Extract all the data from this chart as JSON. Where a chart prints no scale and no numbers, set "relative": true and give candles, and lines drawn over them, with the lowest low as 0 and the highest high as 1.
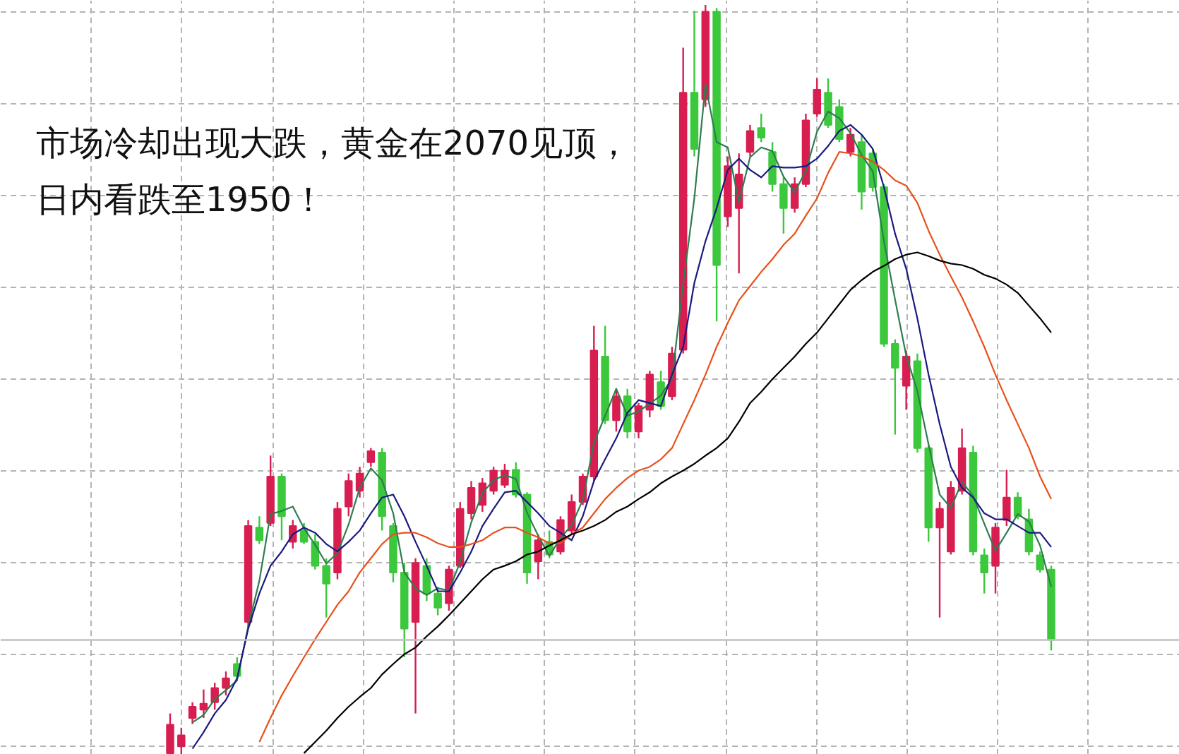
{
  "chart_data": {
    "type": "candlestick",
    "annotations": [
      "市场冷却出现大跌，黄金在2070见顶，",
      "日内看跌至1950！"
    ],
    "relative": true,
    "grid": true,
    "categories": [
      null,
      null,
      null,
      null,
      null,
      null,
      null,
      null,
      null,
      null,
      null,
      null,
      null,
      null,
      null,
      null,
      null,
      null,
      null,
      null,
      null,
      null,
      null,
      null,
      null,
      null,
      null,
      null,
      null,
      null,
      null,
      null,
      null,
      null,
      null,
      null,
      null,
      null,
      null,
      null,
      null,
      null,
      null,
      null,
      null,
      null,
      null,
      null,
      null,
      null,
      null,
      null,
      null,
      null,
      null,
      null,
      null,
      null,
      null,
      null,
      null,
      null,
      null,
      null,
      null,
      null,
      null,
      null,
      null,
      null,
      null,
      null,
      null,
      null,
      null,
      null,
      null,
      null,
      null,
      null
    ],
    "ohlc": [
      [
        0.002,
        0.055,
        0,
        0.04
      ],
      [
        0.011,
        0.036,
        0,
        0.026
      ],
      [
        0.049,
        0.07,
        0.041,
        0.064
      ],
      [
        0.06,
        0.087,
        0.049,
        0.068
      ],
      [
        0.07,
        0.096,
        0.06,
        0.089
      ],
      [
        0.089,
        0.111,
        0.079,
        0.102
      ],
      [
        0.121,
        0.13,
        0.102,
        0.105
      ],
      [
        0.177,
        0.313,
        0.168,
        0.305
      ],
      [
        0.303,
        0.318,
        0.281,
        0.286
      ],
      [
        0.309,
        0.399,
        0.305,
        0.371
      ],
      [
        0.371,
        0.375,
        0.286,
        0.318
      ],
      [
        0.284,
        0.313,
        0.275,
        0.305
      ],
      [
        0.299,
        0.309,
        0.281,
        0.284
      ],
      [
        0.284,
        0.294,
        0.247,
        0.252
      ],
      [
        0.252,
        0.262,
        0.183,
        0.228
      ],
      [
        0.243,
        0.337,
        0.234,
        0.328
      ],
      [
        0.331,
        0.375,
        0.318,
        0.365
      ],
      [
        0.352,
        0.384,
        0.343,
        0.375
      ],
      [
        0.39,
        0.409,
        0.384,
        0.405
      ],
      [
        0.403,
        0.409,
        0.299,
        0.318
      ],
      [
        0.305,
        0.309,
        0.23,
        0.243
      ],
      [
        0.243,
        0.256,
        0.13,
        0.168
      ],
      [
        0.177,
        0.262,
        0.055,
        0.256
      ],
      [
        0.252,
        0.262,
        0.205,
        0.215
      ],
      [
        0.215,
        0.224,
        0.186,
        0.196
      ],
      [
        0.202,
        0.252,
        0.192,
        0.247
      ],
      [
        0.252,
        0.337,
        0.249,
        0.328
      ],
      [
        0.322,
        0.365,
        0.314,
        0.356
      ],
      [
        0.333,
        0.369,
        0.324,
        0.362
      ],
      [
        0.352,
        0.384,
        0.347,
        0.379
      ],
      [
        0.36,
        0.388,
        0.356,
        0.379
      ],
      [
        0.38,
        0.39,
        0.343,
        0.347
      ],
      [
        0.347,
        0.35,
        0.228,
        0.243
      ],
      [
        0.258,
        0.294,
        0.234,
        0.286
      ],
      [
        0.284,
        0.299,
        0.262,
        0.267
      ],
      [
        0.271,
        0.318,
        0.267,
        0.313
      ],
      [
        0.299,
        0.347,
        0.294,
        0.337
      ],
      [
        0.337,
        0.375,
        0.333,
        0.371
      ],
      [
        0.371,
        0.572,
        0.365,
        0.539
      ],
      [
        0.531,
        0.572,
        0.441,
        0.446
      ],
      [
        0.446,
        0.488,
        0.431,
        0.478
      ],
      [
        0.478,
        0.488,
        0.422,
        0.431
      ],
      [
        0.431,
        0.469,
        0.422,
        0.465
      ],
      [
        0.46,
        0.512,
        0.45,
        0.507
      ],
      [
        0.497,
        0.512,
        0.46,
        0.465
      ],
      [
        0.478,
        0.544,
        0.473,
        0.535
      ],
      [
        0.54,
        0.943,
        0.535,
        0.883
      ],
      [
        0.883,
        0.992,
        0.798,
        0.808
      ],
      [
        0.874,
        1.0,
        0.864,
        0.991
      ],
      [
        0.991,
        0.996,
        0.578,
        0.653
      ],
      [
        0.718,
        0.798,
        0.704,
        0.785
      ],
      [
        0.729,
        0.802,
        0.642,
        0.774
      ],
      [
        0.804,
        0.84,
        0.798,
        0.832
      ],
      [
        0.836,
        0.855,
        0.817,
        0.823
      ],
      [
        0.804,
        0.817,
        0.751,
        0.761
      ],
      [
        0.761,
        0.77,
        0.695,
        0.729
      ],
      [
        0.729,
        0.77,
        0.723,
        0.761
      ],
      [
        0.761,
        0.855,
        0.757,
        0.846
      ],
      [
        0.855,
        0.902,
        0.851,
        0.887
      ],
      [
        0.883,
        0.902,
        0.836,
        0.84
      ],
      [
        0.864,
        0.874,
        0.817,
        0.821
      ],
      [
        0.804,
        0.836,
        0.798,
        0.827
      ],
      [
        0.817,
        0.827,
        0.727,
        0.751
      ],
      [
        0.802,
        0.808,
        0.751,
        0.757
      ],
      [
        0.757,
        0.761,
        0.544,
        0.548
      ],
      [
        0.548,
        0.554,
        0.427,
        0.516
      ],
      [
        0.492,
        0.539,
        0.46,
        0.531
      ],
      [
        0.525,
        0.535,
        0.403,
        0.409
      ],
      [
        0.409,
        0.412,
        0.284,
        0.303
      ],
      [
        0.303,
        0.337,
        0.183,
        0.328
      ],
      [
        0.271,
        0.365,
        0.267,
        0.356
      ],
      [
        0.352,
        0.435,
        0.347,
        0.409
      ],
      [
        0.403,
        0.412,
        0.266,
        0.271
      ],
      [
        0.266,
        0.275,
        0.215,
        0.243
      ],
      [
        0.252,
        0.309,
        0.215,
        0.303
      ],
      [
        0.313,
        0.38,
        0.305,
        0.343
      ],
      [
        0.343,
        0.35,
        0.314,
        0.318
      ],
      [
        0.314,
        0.328,
        0.266,
        0.271
      ],
      [
        0.266,
        0.271,
        0.243,
        0.247
      ],
      [
        0.247,
        0.252,
        0.139,
        0.153
      ]
    ],
    "colors": [
      "#d81e50",
      "#d81e50",
      "#d81e50",
      "#d81e50",
      "#d81e50",
      "#d81e50",
      "#3cc83c",
      "#d81e50",
      "#3cc83c",
      "#d81e50",
      "#3cc83c",
      "#d81e50",
      "#3cc83c",
      "#3cc83c",
      "#3cc83c",
      "#d81e50",
      "#d81e50",
      "#d81e50",
      "#d81e50",
      "#3cc83c",
      "#3cc83c",
      "#3cc83c",
      "#d81e50",
      "#3cc83c",
      "#3cc83c",
      "#d81e50",
      "#d81e50",
      "#d81e50",
      "#d81e50",
      "#d81e50",
      "#d81e50",
      "#3cc83c",
      "#3cc83c",
      "#d81e50",
      "#3cc83c",
      "#d81e50",
      "#d81e50",
      "#d81e50",
      "#d81e50",
      "#3cc83c",
      "#d81e50",
      "#3cc83c",
      "#d81e50",
      "#d81e50",
      "#3cc83c",
      "#d81e50",
      "#d81e50",
      "#3cc83c",
      "#d81e50",
      "#3cc83c",
      "#d81e50",
      "#d81e50",
      "#d81e50",
      "#3cc83c",
      "#3cc83c",
      "#3cc83c",
      "#d81e50",
      "#d81e50",
      "#d81e50",
      "#3cc83c",
      "#3cc83c",
      "#d81e50",
      "#3cc83c",
      "#3cc83c",
      "#3cc83c",
      "#3cc83c",
      "#d81e50",
      "#3cc83c",
      "#3cc83c",
      "#d81e50",
      "#d81e50",
      "#d81e50",
      "#3cc83c",
      "#3cc83c",
      "#d81e50",
      "#d81e50",
      "#3cc83c",
      "#3cc83c",
      "#3cc83c",
      "#3cc83c"
    ],
    "series": [
      {
        "type": "line",
        "color": "#2e7d4f",
        "values": [
          null,
          null,
          0.043,
          0.053,
          0.074,
          0.086,
          0.099,
          0.171,
          0.232,
          0.321,
          0.325,
          0.331,
          0.302,
          0.28,
          0.255,
          0.269,
          0.307,
          0.356,
          0.382,
          0.366,
          0.322,
          0.243,
          0.222,
          0.213,
          0.222,
          0.219,
          0.257,
          0.31,
          0.349,
          0.366,
          0.373,
          0.368,
          0.323,
          0.292,
          0.265,
          0.289,
          0.306,
          0.34,
          0.416,
          0.452,
          0.488,
          0.452,
          0.458,
          0.468,
          0.479,
          0.502,
          0.628,
          0.742,
          0.894,
          0.817,
          0.81,
          0.737,
          0.797,
          0.81,
          0.805,
          0.771,
          0.75,
          0.779,
          0.831,
          0.858,
          0.849,
          0.829,
          0.8,
          0.778,
          0.685,
          0.607,
          0.532,
          0.485,
          0.414,
          0.347,
          0.329,
          0.364,
          0.345,
          0.308,
          0.272,
          0.296,
          0.321,
          0.311,
          0.279,
          0.224
        ]
      },
      {
        "type": "line",
        "color": "#1a1a80",
        "values": [
          null,
          null,
          0.008,
          0.03,
          0.055,
          0.073,
          0.102,
          0.168,
          0.215,
          0.252,
          0.271,
          0.294,
          0.303,
          0.296,
          0.281,
          0.271,
          0.284,
          0.299,
          0.322,
          0.343,
          0.347,
          0.318,
          0.284,
          0.252,
          0.218,
          0.218,
          0.243,
          0.271,
          0.305,
          0.328,
          0.35,
          0.352,
          0.337,
          0.322,
          0.305,
          0.296,
          0.286,
          0.318,
          0.365,
          0.394,
          0.422,
          0.456,
          0.473,
          0.469,
          0.465,
          0.507,
          0.544,
          0.629,
          0.685,
          0.729,
          0.78,
          0.795,
          0.78,
          0.77,
          0.785,
          0.783,
          0.783,
          0.785,
          0.795,
          0.812,
          0.832,
          0.84,
          0.827,
          0.808,
          0.757,
          0.695,
          0.648,
          0.582,
          0.507,
          0.441,
          0.384,
          0.356,
          0.343,
          0.322,
          0.314,
          0.314,
          0.305,
          0.296,
          0.296,
          0.277
        ]
      },
      {
        "type": "line",
        "color": "#e8501a",
        "values": [
          null,
          null,
          null,
          null,
          null,
          null,
          null,
          null,
          0.017,
          0.049,
          0.079,
          0.105,
          0.13,
          0.154,
          0.177,
          0.2,
          0.218,
          0.243,
          0.262,
          0.281,
          0.294,
          0.296,
          0.296,
          0.29,
          0.282,
          0.277,
          0.277,
          0.281,
          0.286,
          0.296,
          0.303,
          0.303,
          0.296,
          0.29,
          0.282,
          0.282,
          0.294,
          0.303,
          0.322,
          0.341,
          0.356,
          0.369,
          0.379,
          0.384,
          0.394,
          0.409,
          0.441,
          0.473,
          0.507,
          0.544,
          0.576,
          0.606,
          0.625,
          0.644,
          0.661,
          0.68,
          0.695,
          0.719,
          0.742,
          0.776,
          0.804,
          0.802,
          0.798,
          0.791,
          0.78,
          0.766,
          0.759,
          0.736,
          0.699,
          0.667,
          0.638,
          0.61,
          0.578,
          0.544,
          0.507,
          0.473,
          0.441,
          0.409,
          0.371,
          0.341
        ]
      },
      {
        "type": "line",
        "color": "#000000",
        "values": [
          null,
          null,
          null,
          null,
          null,
          null,
          null,
          null,
          null,
          null,
          null,
          null,
          0.002,
          0.017,
          0.032,
          0.049,
          0.064,
          0.077,
          0.089,
          0.107,
          0.121,
          0.134,
          0.143,
          0.158,
          0.171,
          0.186,
          0.202,
          0.218,
          0.234,
          0.247,
          0.252,
          0.258,
          0.267,
          0.271,
          0.279,
          0.286,
          0.294,
          0.299,
          0.305,
          0.313,
          0.324,
          0.331,
          0.341,
          0.35,
          0.362,
          0.371,
          0.379,
          0.388,
          0.399,
          0.409,
          0.422,
          0.444,
          0.469,
          0.484,
          0.501,
          0.516,
          0.531,
          0.548,
          0.563,
          0.582,
          0.601,
          0.62,
          0.633,
          0.644,
          0.652,
          0.661,
          0.667,
          0.67,
          0.665,
          0.659,
          0.655,
          0.653,
          0.648,
          0.64,
          0.635,
          0.627,
          0.616,
          0.599,
          0.582,
          0.563
        ]
      }
    ],
    "ref_lines": [
      {
        "axis": "y",
        "value": 0.153,
        "color": "#c0c0c0"
      }
    ]
  }
}
